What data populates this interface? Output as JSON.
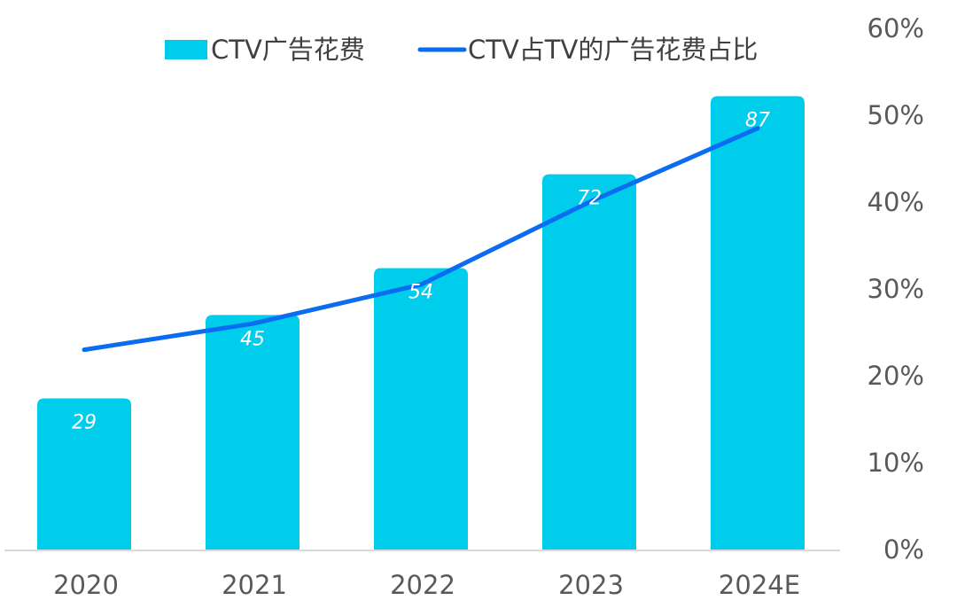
{
  "chart_data": {
    "type": "bar",
    "categories": [
      "2020",
      "2021",
      "2022",
      "2023",
      "2024E"
    ],
    "series": [
      {
        "name": "CTV广告花费",
        "type": "bar",
        "axis": "left",
        "values": [
          29,
          45,
          54,
          72,
          87
        ],
        "color": "#00CCEB"
      },
      {
        "name": "CTV占TV的广告花费占比",
        "type": "line",
        "axis": "right",
        "values": [
          23,
          26,
          30.5,
          40,
          48.5
        ],
        "unit": "%",
        "color": "#0A6CF0"
      }
    ],
    "bar_data_labels": [
      "29",
      "45",
      "54",
      "72",
      "87"
    ],
    "y_left_lim": [
      0,
      100
    ],
    "y_right_lim": [
      0,
      60
    ],
    "y_right_ticks": [
      "0%",
      "10%",
      "20%",
      "30%",
      "40%",
      "50%",
      "60%"
    ],
    "legend_position": "top"
  }
}
